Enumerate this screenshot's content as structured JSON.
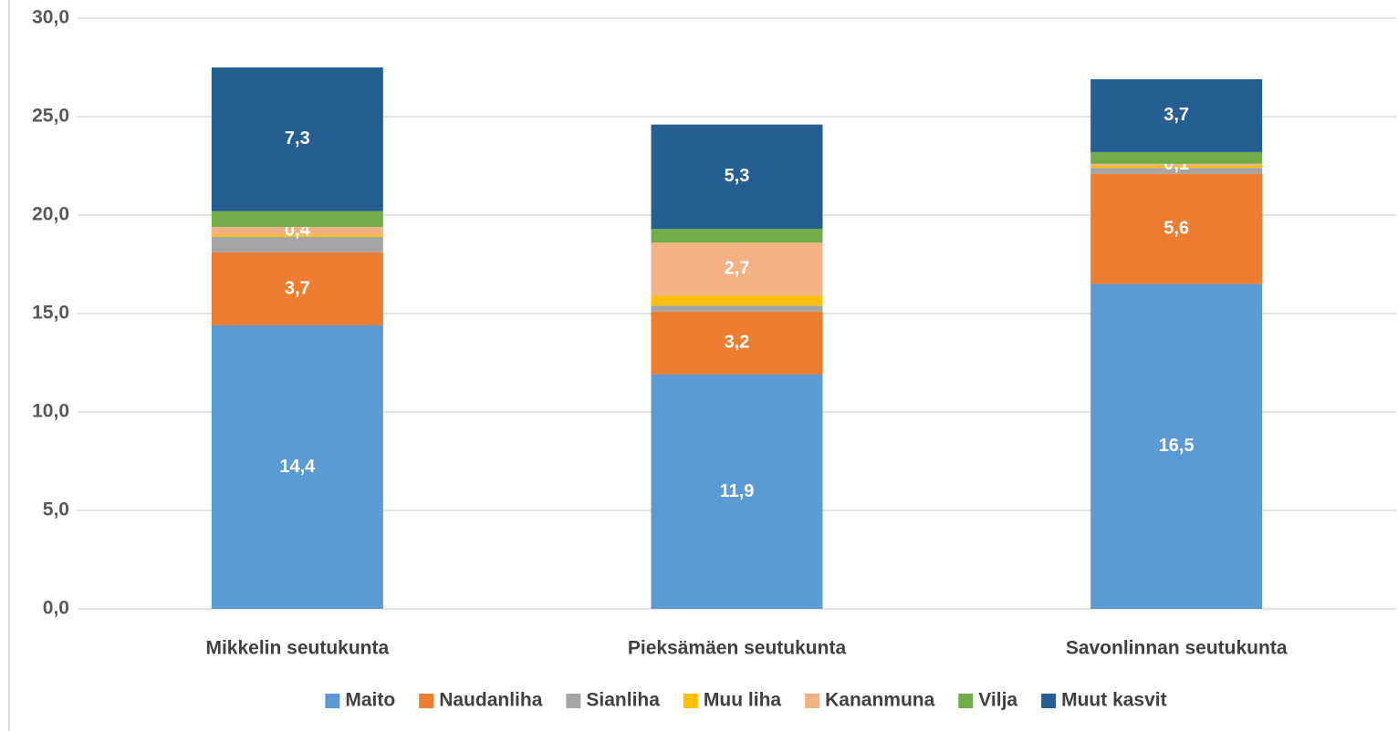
{
  "chart_data": {
    "type": "stacked_bar",
    "categories": [
      "Mikkelin seutukunta",
      "Pieksämäen seutukunta",
      "Savonlinnan seutukunta"
    ],
    "series": [
      {
        "name": "Maito",
        "color": "#5b9bd5",
        "values": [
          14.4,
          11.9,
          16.5
        ],
        "value_labels": [
          "14,4",
          "11,9",
          "16,5"
        ]
      },
      {
        "name": "Naudanliha",
        "color": "#ed7d31",
        "values": [
          3.7,
          3.2,
          5.6
        ],
        "value_labels": [
          "3,7",
          "3,2",
          "5,6"
        ]
      },
      {
        "name": "Sianliha",
        "color": "#a5a5a5",
        "values": [
          0.8,
          0.3,
          0.3
        ],
        "value_labels": [
          null,
          null,
          null
        ]
      },
      {
        "name": "Muu liha",
        "color": "#ffc000",
        "values": [
          0.1,
          0.5,
          0.1
        ],
        "value_labels": [
          null,
          null,
          null
        ]
      },
      {
        "name": "Kananmuna",
        "color": "#f4b183",
        "values": [
          0.4,
          2.7,
          0.1
        ],
        "value_labels": [
          "0,4",
          "2,7",
          "0,1"
        ]
      },
      {
        "name": "Vilja",
        "color": "#70ad47",
        "values": [
          0.8,
          0.7,
          0.6
        ],
        "value_labels": [
          null,
          null,
          null
        ]
      },
      {
        "name": "Muut kasvit",
        "color": "#255e91",
        "values": [
          7.3,
          5.3,
          3.7
        ],
        "value_labels": [
          "7,3",
          "5,3",
          "3,7"
        ]
      }
    ],
    "ylim": [
      0,
      30
    ],
    "yticks": [
      {
        "value": 0,
        "label": "0,0"
      },
      {
        "value": 5,
        "label": "5,0"
      },
      {
        "value": 10,
        "label": "10,0"
      },
      {
        "value": 15,
        "label": "15,0"
      },
      {
        "value": 20,
        "label": "20,0"
      },
      {
        "value": 25,
        "label": "25,0"
      },
      {
        "value": 30,
        "label": "30,0"
      }
    ],
    "grid": true,
    "legend": "bottom"
  }
}
